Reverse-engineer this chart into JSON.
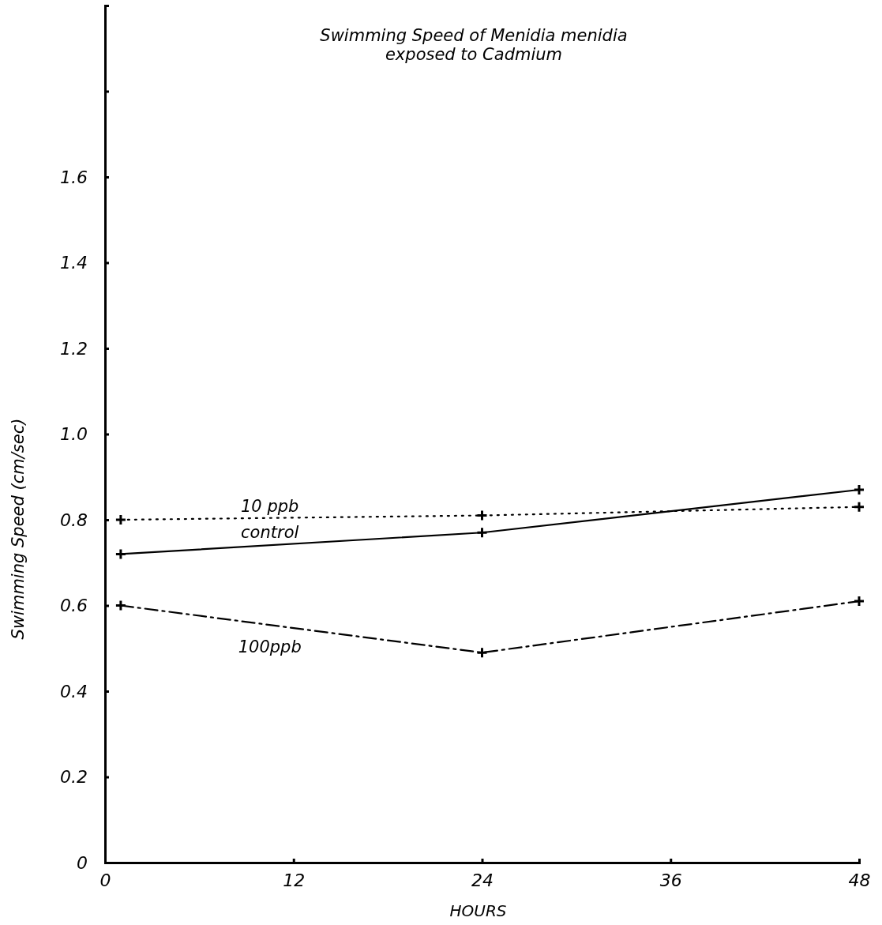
{
  "chart_data": {
    "type": "line",
    "title": "Swimming Speed of Menidia menidia",
    "subtitle": "exposed to Cadmium",
    "xlabel": "HOURS",
    "ylabel": "Swimming Speed (cm/sec)",
    "x": [
      1,
      24,
      48
    ],
    "series": [
      {
        "name": "10 ppb",
        "color": "#000000",
        "values": [
          0.8,
          0.81,
          0.83
        ],
        "line_style": "dotted"
      },
      {
        "name": "control",
        "color": "#000000",
        "values": [
          0.72,
          0.77,
          0.87
        ],
        "line_style": "solid"
      },
      {
        "name": "100ppb",
        "color": "#000000",
        "values": [
          0.6,
          0.49,
          0.61
        ],
        "line_style": "dashed"
      }
    ],
    "xlim": [
      0,
      48
    ],
    "xticks": [
      0,
      12,
      24,
      36,
      48
    ],
    "ylim": [
      0,
      2.0
    ],
    "yticks": [
      0,
      0.2,
      0.4,
      0.6,
      0.8,
      {
        "value": 1.0,
        "label": "1.0"
      },
      1.2,
      1.4,
      1.6,
      {
        "value": 1.8,
        "label": null
      }
    ],
    "grid": false,
    "marker": "cross"
  }
}
